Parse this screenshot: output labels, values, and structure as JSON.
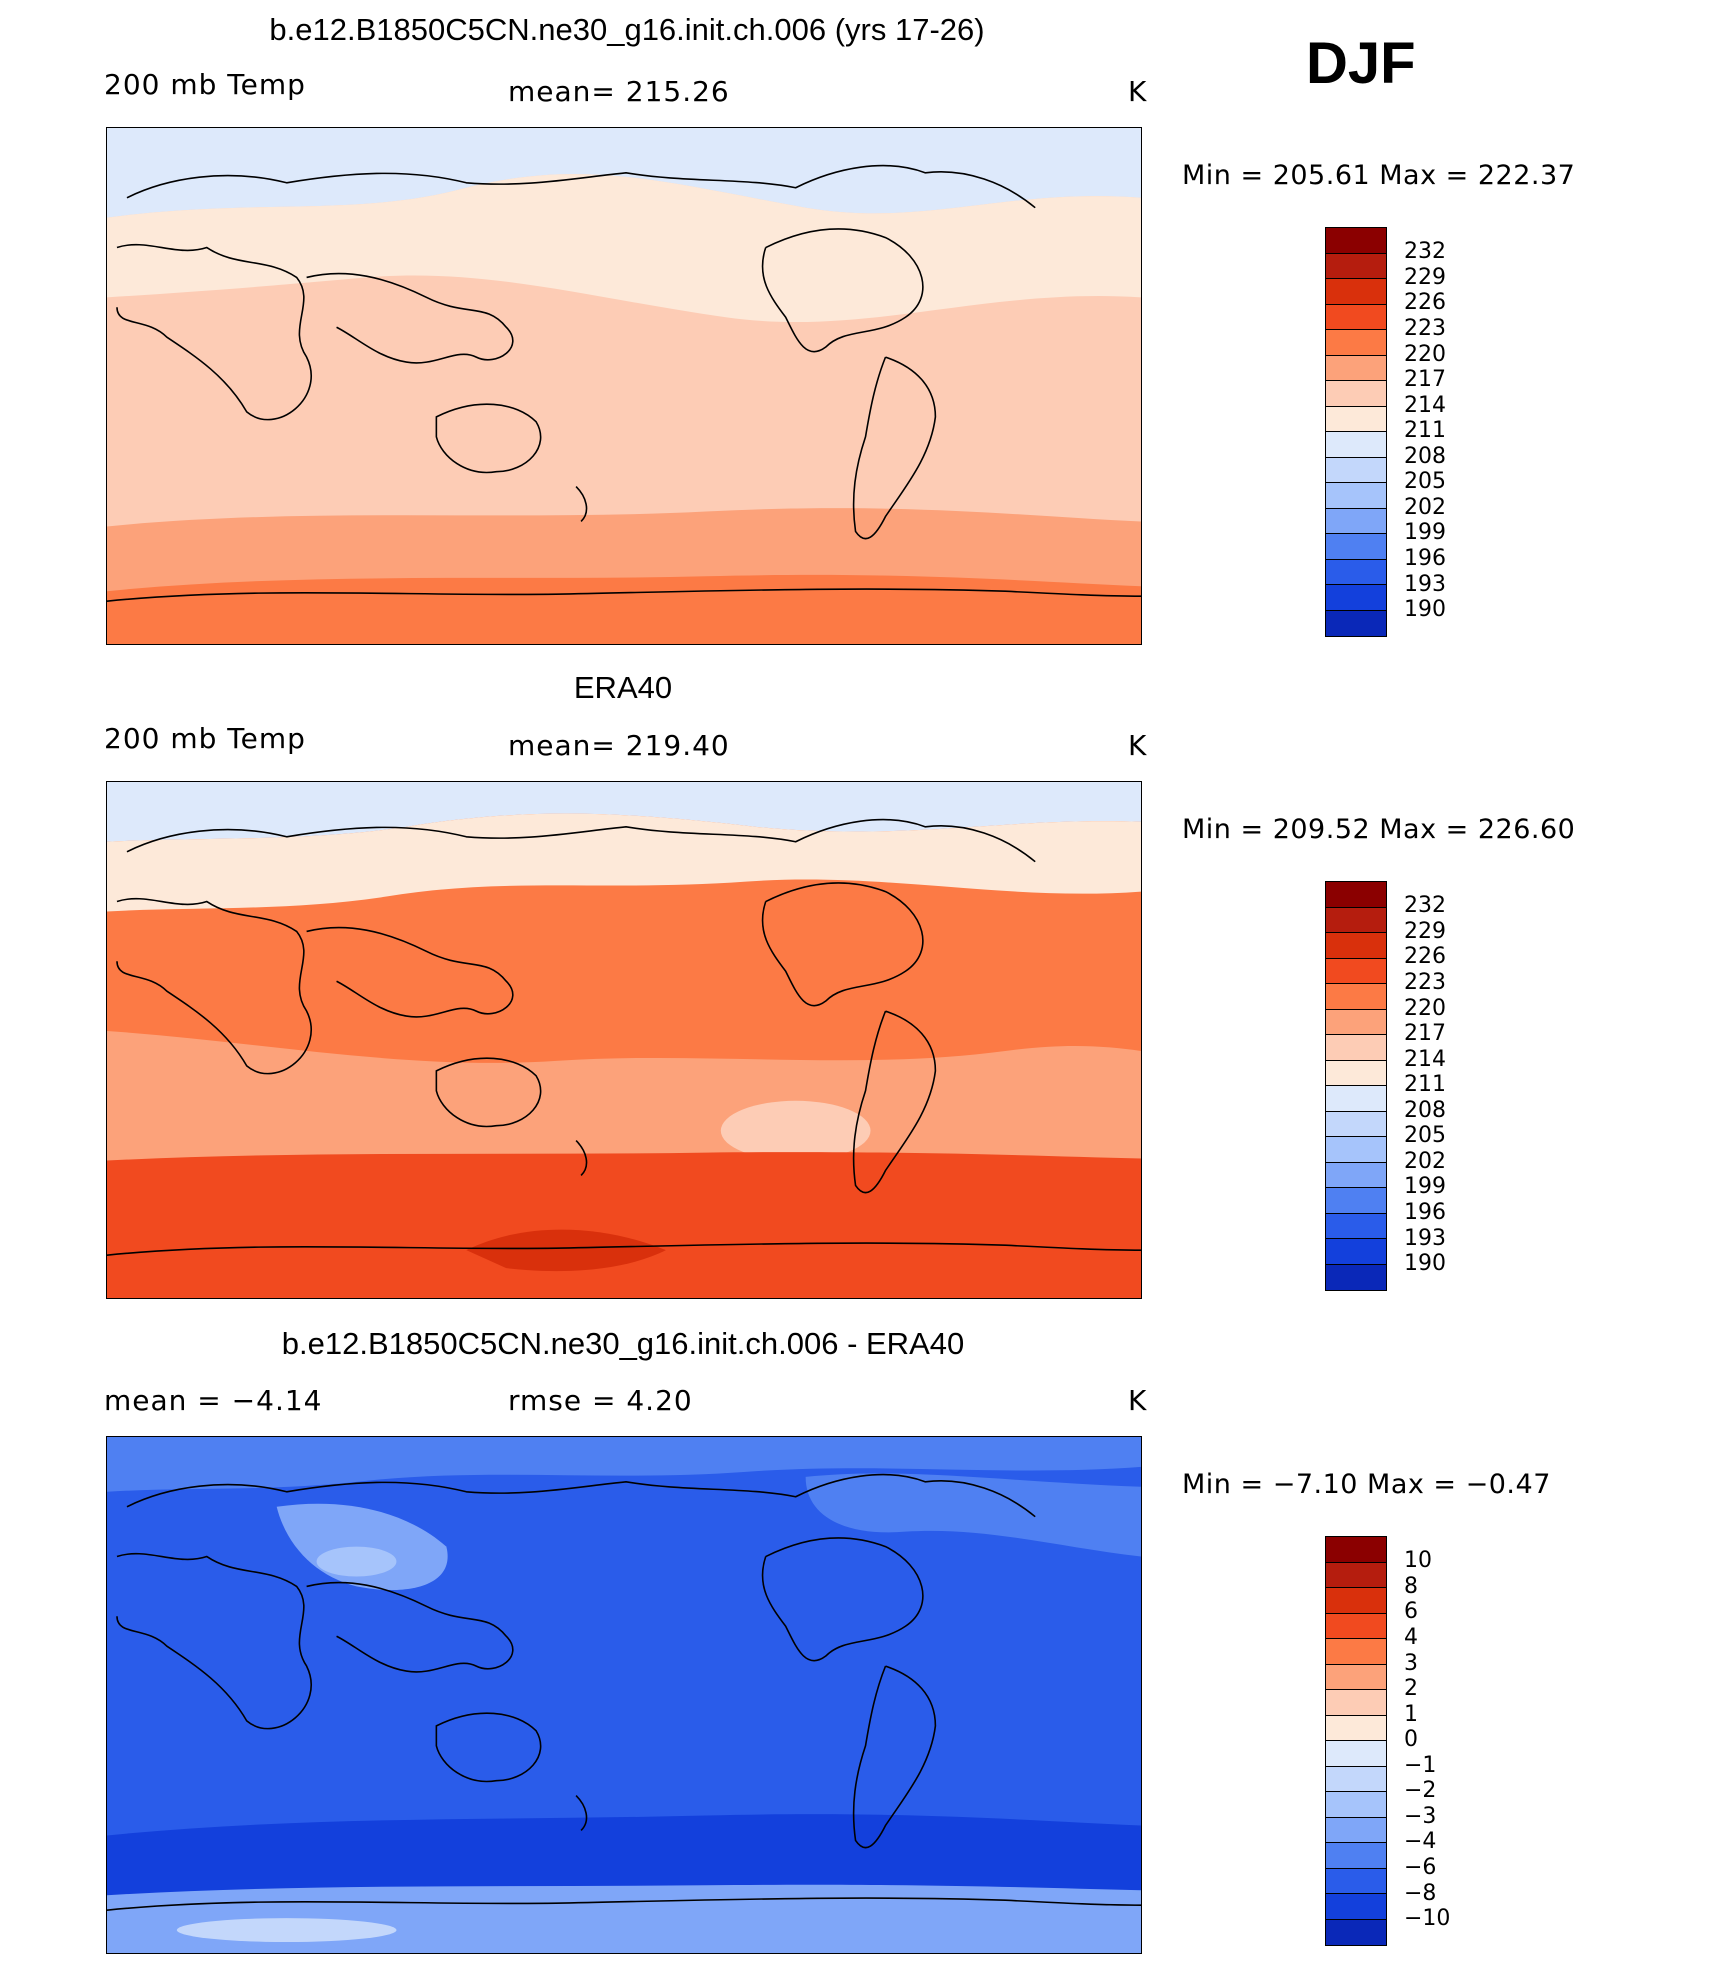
{
  "season": "DJF",
  "palette_temp": [
    "#8b0000",
    "#b51d0e",
    "#d9300c",
    "#f14a1f",
    "#fc7a45",
    "#fca27a",
    "#fdccb5",
    "#fde9d9",
    "#dde9fb",
    "#c3d7fb",
    "#a6c4fb",
    "#7fa6f8",
    "#4f80f2",
    "#2a5cea",
    "#1340dc",
    "#0a28b8",
    "#0a1890"
  ],
  "palette_diff": [
    "#8b0000",
    "#b51d0e",
    "#d9300c",
    "#f14a1f",
    "#fc7a45",
    "#fca27a",
    "#fdccb5",
    "#fde9d9",
    "#dde9fb",
    "#c3d7fb",
    "#a6c4fb",
    "#7fa6f8",
    "#4f80f2",
    "#2a5cea",
    "#1340dc",
    "#0a28b8",
    "#0a1890"
  ],
  "panels": [
    {
      "title": "b.e12.B1850C5CN.ne30_g16.init.ch.006 (yrs 17-26)",
      "left_label": "200 mb Temp",
      "center_label": "mean=  215.26",
      "unit": "K",
      "minmax": "Min  =  205.61  Max  =  222.37",
      "cbar_labels": [
        "232",
        "229",
        "226",
        "223",
        "220",
        "217",
        "214",
        "211",
        "208",
        "205",
        "202",
        "199",
        "196",
        "193",
        "190"
      ],
      "field_colors": {
        "north": "#dde9fb",
        "mid": "#fde9d9",
        "tropics": "#fdccb5",
        "south": "#fca27a",
        "antarctic": "#fc7a45"
      }
    },
    {
      "title": "ERA40",
      "left_label": "200 mb Temp",
      "center_label": "mean=  219.40",
      "unit": "K",
      "minmax": "Min  =  209.52  Max  =  226.60",
      "cbar_labels": [
        "232",
        "229",
        "226",
        "223",
        "220",
        "217",
        "214",
        "211",
        "208",
        "205",
        "202",
        "199",
        "196",
        "193",
        "190"
      ],
      "field_colors": {
        "north": "#dde9fb",
        "mid": "#fde9d9",
        "tropics": "#fc7a45",
        "south": "#f14a1f",
        "antarctic": "#fca27a"
      }
    },
    {
      "title": "b.e12.B1850C5CN.ne30_g16.init.ch.006 - ERA40",
      "left_label": "mean  =     −4.14",
      "center_label": "rmse  =      4.20",
      "unit": "K",
      "minmax": "Min  =    −7.10  Max  =    −0.47",
      "cbar_labels": [
        "10",
        "8",
        "6",
        "4",
        "3",
        "2",
        "1",
        "0",
        "−1",
        "−2",
        "−3",
        "−4",
        "−6",
        "−8",
        "−10"
      ],
      "field_colors": {
        "north": "#4f80f2",
        "mid": "#7fa6f8",
        "tropics": "#2a5cea",
        "south": "#1340dc",
        "antarctic": "#a6c4fb"
      }
    }
  ]
}
